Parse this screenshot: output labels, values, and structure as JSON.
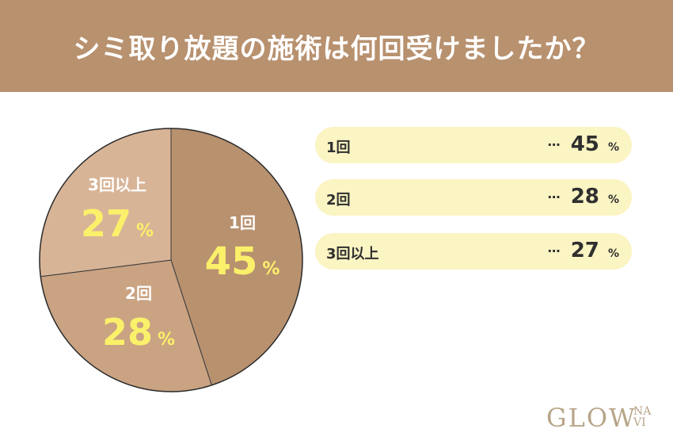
{
  "header": {
    "title": "シミ取り放題の施術は何回受けましたか？"
  },
  "chart_data": {
    "type": "pie",
    "title": "シミ取り放題の施術は何回受けましたか？",
    "slices": [
      {
        "label": "1回",
        "value": 45,
        "color": "#b8916f"
      },
      {
        "label": "2回",
        "value": 28,
        "color": "#c9a382"
      },
      {
        "label": "3回以上",
        "value": 27,
        "color": "#d8b497"
      }
    ],
    "unit": "%",
    "separator": "…",
    "label_value_color": "#fbf06a",
    "label_text_color": "#ffffff"
  },
  "logo": {
    "main": "GLOW",
    "sub1": "NA",
    "sub2": "VI"
  }
}
